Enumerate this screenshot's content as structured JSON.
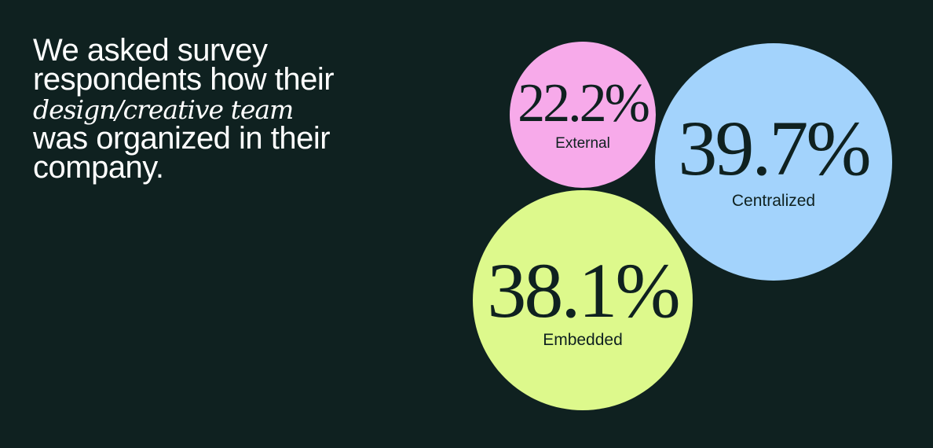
{
  "headline": {
    "part1": "We asked survey respondents how their ",
    "emphasis": "design/creative team",
    "part2": " was organized in their company."
  },
  "chart_data": {
    "type": "bubble",
    "series": [
      {
        "label": "External",
        "value": 22.2,
        "display": "22.2%",
        "color": "#f7aaea"
      },
      {
        "label": "Centralized",
        "value": 39.7,
        "display": "39.7%",
        "color": "#a3d3fc"
      },
      {
        "label": "Embedded",
        "value": 38.1,
        "display": "38.1%",
        "color": "#ddf98c"
      }
    ]
  },
  "colors": {
    "background": "#0f2120",
    "text_light": "#ffffff",
    "text_dark": "#0f2120"
  }
}
